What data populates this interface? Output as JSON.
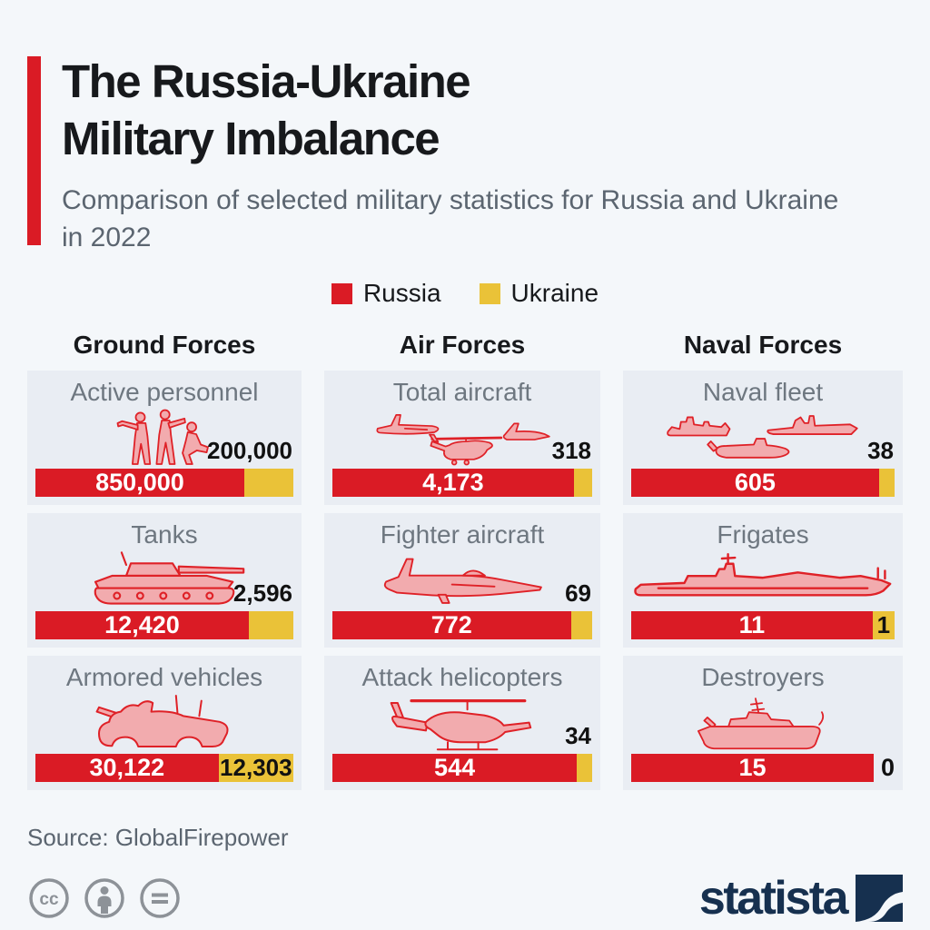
{
  "header": {
    "title_line1": "The Russia-Ukraine",
    "title_line2": "Military Imbalance",
    "subtitle": "Comparison of selected military statistics for Russia and Ukraine in 2022"
  },
  "legend": [
    {
      "label": "Russia",
      "color": "#da1b25"
    },
    {
      "label": "Ukraine",
      "color": "#eac238"
    }
  ],
  "chart_data": {
    "type": "bar",
    "subtype": "stacked-proportional-pictorial",
    "series": [
      "Russia",
      "Ukraine"
    ],
    "colors": {
      "Russia": "#da1b25",
      "Ukraine": "#eac238"
    },
    "groups": [
      {
        "title": "Ground Forces",
        "items": [
          {
            "label": "Active personnel",
            "russia": 850000,
            "ukraine": 200000,
            "russia_display": "850,000",
            "ukraine_display": "200,000",
            "ukraine_label_position": "above",
            "icon": "soldiers-icon"
          },
          {
            "label": "Tanks",
            "russia": 12420,
            "ukraine": 2596,
            "russia_display": "12,420",
            "ukraine_display": "2,596",
            "ukraine_label_position": "above",
            "icon": "tank-icon"
          },
          {
            "label": "Armored vehicles",
            "russia": 30122,
            "ukraine": 12303,
            "russia_display": "30,122",
            "ukraine_display": "12,303",
            "ukraine_label_position": "inside",
            "icon": "armored-vehicle-icon"
          }
        ]
      },
      {
        "title": "Air Forces",
        "items": [
          {
            "label": "Total aircraft",
            "russia": 4173,
            "ukraine": 318,
            "russia_display": "4,173",
            "ukraine_display": "318",
            "ukraine_label_position": "above",
            "icon": "aircraft-trio-icon"
          },
          {
            "label": "Fighter aircraft",
            "russia": 772,
            "ukraine": 69,
            "russia_display": "772",
            "ukraine_display": "69",
            "ukraine_label_position": "above",
            "icon": "fighter-jet-icon"
          },
          {
            "label": "Attack helicopters",
            "russia": 544,
            "ukraine": 34,
            "russia_display": "544",
            "ukraine_display": "34",
            "ukraine_label_position": "above",
            "icon": "attack-helicopter-icon"
          }
        ]
      },
      {
        "title": "Naval Forces",
        "items": [
          {
            "label": "Naval fleet",
            "russia": 605,
            "ukraine": 38,
            "russia_display": "605",
            "ukraine_display": "38",
            "ukraine_label_position": "above",
            "icon": "naval-fleet-icon"
          },
          {
            "label": "Frigates",
            "russia": 11,
            "ukraine": 1,
            "russia_display": "11",
            "ukraine_display": "1",
            "ukraine_label_position": "inside",
            "icon": "frigate-icon"
          },
          {
            "label": "Destroyers",
            "russia": 15,
            "ukraine": 0,
            "russia_display": "15",
            "ukraine_display": "0",
            "ukraine_label_position": "right",
            "icon": "destroyer-icon"
          }
        ]
      }
    ]
  },
  "footer": {
    "source": "Source: GlobalFirepower",
    "cc_icons": [
      "creative-commons-icon",
      "attribution-icon",
      "no-derivatives-icon"
    ],
    "brand": "statista"
  }
}
